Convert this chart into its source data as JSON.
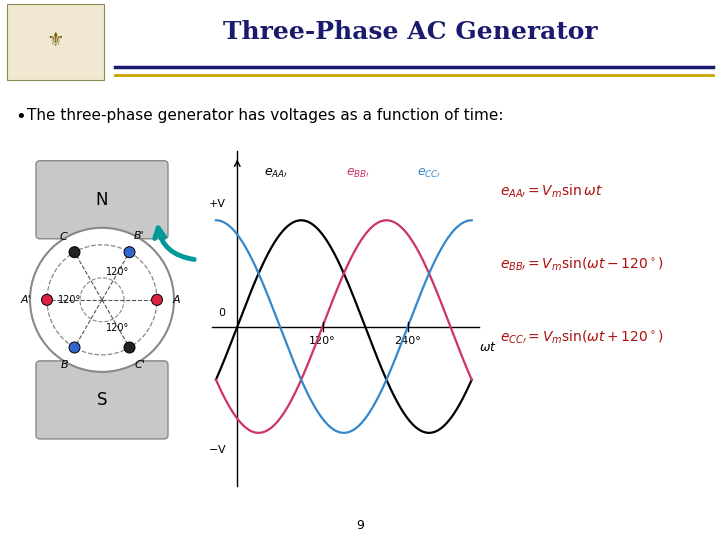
{
  "title": "Three-Phase AC Generator",
  "title_color": "#1a1a6e",
  "title_fontsize": 18,
  "bullet_text": "The three-phase generator has voltages as a function of time:",
  "bullet_fontsize": 11,
  "background_color": "#ffffff",
  "eAA_color": "#000000",
  "eBB_color": "#cc3366",
  "eCC_color": "#3388cc",
  "eq_color": "#aa1111",
  "eq_fontsize": 10,
  "separator_color1": "#1a1a6e",
  "separator_color2": "#c8a400",
  "page_number": "9",
  "dot_A_color": "#dd2244",
  "dot_B_color": "#3366cc",
  "dot_C_color": "#222222"
}
